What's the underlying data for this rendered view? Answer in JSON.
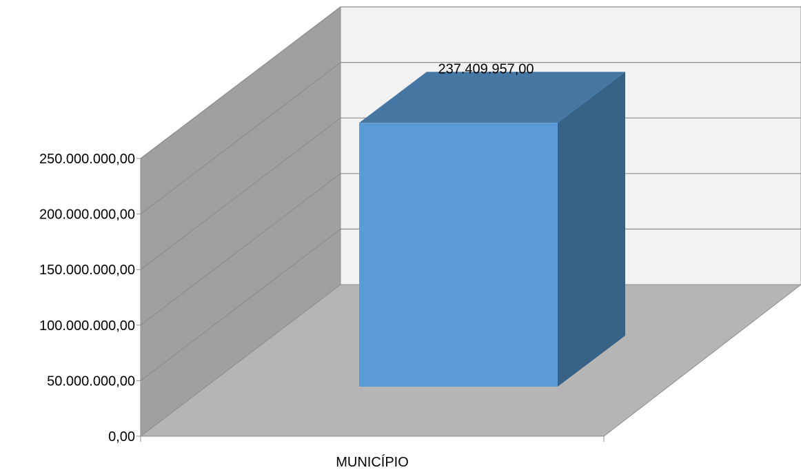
{
  "chart_data": {
    "type": "bar",
    "style": "3d-column",
    "categories": [
      "MUNICÍPIO"
    ],
    "values": [
      237409957
    ],
    "data_labels": [
      "237.409.957,00"
    ],
    "title": "",
    "xlabel": "",
    "ylabel": "",
    "ylim": [
      0,
      250000000
    ],
    "y_ticks": [
      0,
      50000000,
      100000000,
      150000000,
      200000000,
      250000000
    ],
    "y_tick_labels": [
      "0,00",
      "50.000.000,00",
      "100.000.000,00",
      "150.000.000,00",
      "200.000.000,00",
      "250.000.000,00"
    ],
    "grid": true,
    "legend": "none",
    "colors": {
      "bar_front": "#5b9bd5",
      "bar_top": "#4677a3",
      "bar_side": "#386285",
      "back_wall": "#f2f2f2",
      "side_wall": "#a0a0a0",
      "floor": "#b5b5b5",
      "gridline": "#8c8c8c"
    }
  }
}
